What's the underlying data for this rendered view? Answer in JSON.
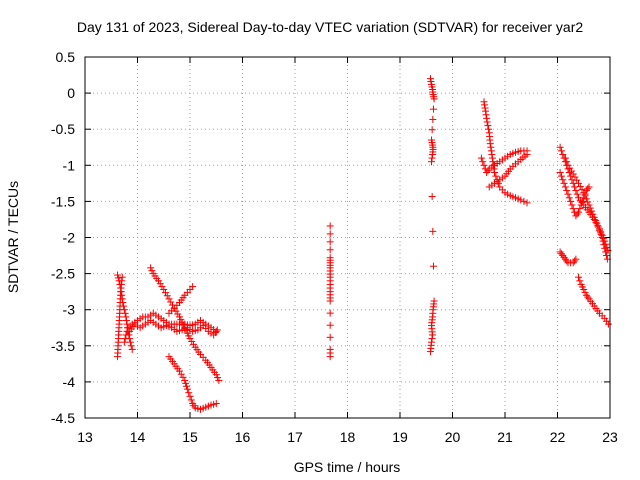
{
  "chart_data": {
    "type": "scatter",
    "title": "Day 131 of 2023, Sidereal Day-to-day VTEC variation (SDTVAR) for receiver yar2",
    "xlabel": "GPS time / hours",
    "ylabel": "SDTVAR / TECUs",
    "xlim": [
      13,
      23
    ],
    "ylim": [
      -4.5,
      0.5
    ],
    "xticks": [
      "13",
      "14",
      "15",
      "16",
      "17",
      "18",
      "19",
      "20",
      "21",
      "22",
      "23"
    ],
    "yticks": [
      "0.5",
      "0",
      "-0.5",
      "-1",
      "-1.5",
      "-2",
      "-2.5",
      "-3",
      "-3.5",
      "-4",
      "-4.5"
    ],
    "grid": true,
    "marker": "+",
    "color": "#ff0000",
    "series": [
      {
        "name": "SDTVAR",
        "segments": [
          [
            [
              13.62,
              -2.52
            ],
            [
              13.65,
              -2.6
            ],
            [
              13.68,
              -2.7
            ],
            [
              13.7,
              -2.8
            ],
            [
              13.72,
              -2.9
            ],
            [
              13.75,
              -3.0
            ],
            [
              13.78,
              -3.1
            ],
            [
              13.8,
              -3.2
            ],
            [
              13.82,
              -3.3
            ],
            [
              13.85,
              -3.4
            ],
            [
              13.88,
              -3.5
            ],
            [
              13.9,
              -3.55
            ]
          ],
          [
            [
              13.62,
              -3.65
            ],
            [
              13.63,
              -3.5
            ],
            [
              13.64,
              -3.35
            ],
            [
              13.65,
              -3.2
            ],
            [
              13.66,
              -3.05
            ],
            [
              13.67,
              -2.9
            ],
            [
              13.68,
              -2.75
            ],
            [
              13.7,
              -2.6
            ],
            [
              13.71,
              -2.55
            ]
          ],
          [
            [
              13.75,
              -3.45
            ],
            [
              13.78,
              -3.35
            ],
            [
              13.82,
              -3.25
            ],
            [
              13.9,
              -3.2
            ],
            [
              14.0,
              -3.15
            ],
            [
              14.1,
              -3.1
            ],
            [
              14.2,
              -3.1
            ],
            [
              14.3,
              -3.05
            ],
            [
              14.4,
              -3.1
            ],
            [
              14.5,
              -3.15
            ],
            [
              14.6,
              -3.2
            ],
            [
              14.7,
              -3.2
            ],
            [
              14.8,
              -3.2
            ],
            [
              14.9,
              -3.2
            ],
            [
              15.0,
              -3.22
            ],
            [
              15.1,
              -3.2
            ],
            [
              15.2,
              -3.15
            ],
            [
              15.3,
              -3.2
            ],
            [
              15.4,
              -3.25
            ],
            [
              15.5,
              -3.3
            ]
          ],
          [
            [
              13.85,
              -3.3
            ],
            [
              13.95,
              -3.2
            ],
            [
              14.05,
              -3.25
            ],
            [
              14.15,
              -3.2
            ],
            [
              14.25,
              -3.15
            ],
            [
              14.35,
              -3.2
            ],
            [
              14.45,
              -3.25
            ],
            [
              14.55,
              -3.22
            ],
            [
              14.65,
              -3.25
            ],
            [
              14.75,
              -3.3
            ],
            [
              14.85,
              -3.28
            ],
            [
              14.95,
              -3.25
            ],
            [
              15.05,
              -3.3
            ],
            [
              15.15,
              -3.28
            ],
            [
              15.25,
              -3.22
            ],
            [
              15.35,
              -3.3
            ],
            [
              15.45,
              -3.35
            ],
            [
              15.52,
              -3.28
            ]
          ],
          [
            [
              14.25,
              -2.42
            ],
            [
              14.3,
              -2.5
            ],
            [
              14.4,
              -2.6
            ],
            [
              14.5,
              -2.72
            ],
            [
              14.6,
              -2.85
            ],
            [
              14.7,
              -2.98
            ],
            [
              14.8,
              -3.1
            ],
            [
              14.9,
              -3.25
            ],
            [
              15.0,
              -3.4
            ],
            [
              15.1,
              -3.52
            ],
            [
              15.2,
              -3.62
            ],
            [
              15.3,
              -3.7
            ],
            [
              15.4,
              -3.8
            ],
            [
              15.5,
              -3.9
            ],
            [
              15.55,
              -3.98
            ]
          ],
          [
            [
              14.6,
              -3.05
            ],
            [
              14.7,
              -2.98
            ],
            [
              14.8,
              -2.9
            ],
            [
              14.9,
              -2.8
            ],
            [
              15.0,
              -2.72
            ],
            [
              15.05,
              -2.68
            ]
          ],
          [
            [
              14.6,
              -3.65
            ],
            [
              14.7,
              -3.75
            ],
            [
              14.8,
              -3.85
            ],
            [
              14.9,
              -3.98
            ],
            [
              14.95,
              -4.1
            ],
            [
              15.0,
              -4.2
            ],
            [
              15.05,
              -4.3
            ],
            [
              15.1,
              -4.36
            ],
            [
              15.2,
              -4.38
            ],
            [
              15.3,
              -4.35
            ],
            [
              15.4,
              -4.32
            ],
            [
              15.5,
              -4.3
            ]
          ],
          [
            [
              17.67,
              -1.84
            ],
            [
              17.67,
              -2.28
            ],
            [
              17.67,
              -2.35
            ],
            [
              17.67,
              -2.42
            ],
            [
              17.67,
              -2.55
            ],
            [
              17.67,
              -2.75
            ],
            [
              17.67,
              -2.88
            ],
            [
              17.67,
              -3.55
            ],
            [
              17.67,
              -3.65
            ]
          ],
          [
            [
              19.58,
              0.2
            ],
            [
              19.6,
              0.12
            ],
            [
              19.62,
              0.05
            ],
            [
              19.63,
              -0.02
            ],
            [
              19.65,
              -0.08
            ],
            [
              19.6,
              -0.65
            ],
            [
              19.62,
              -0.72
            ],
            [
              19.63,
              -0.78
            ],
            [
              19.62,
              -0.85
            ],
            [
              19.6,
              -0.95
            ],
            [
              19.65,
              -2.88
            ],
            [
              19.63,
              -3.0
            ],
            [
              19.62,
              -3.1
            ],
            [
              19.6,
              -3.22
            ],
            [
              19.62,
              -3.35
            ],
            [
              19.6,
              -3.45
            ],
            [
              19.58,
              -3.58
            ]
          ],
          [
            [
              20.6,
              -0.12
            ],
            [
              20.63,
              -0.25
            ],
            [
              20.66,
              -0.4
            ],
            [
              20.7,
              -0.55
            ],
            [
              20.72,
              -0.7
            ],
            [
              20.75,
              -0.85
            ],
            [
              20.78,
              -1.0
            ],
            [
              20.8,
              -1.1
            ],
            [
              20.85,
              -1.2
            ],
            [
              20.9,
              -1.3
            ],
            [
              21.0,
              -1.38
            ],
            [
              21.1,
              -1.42
            ],
            [
              21.2,
              -1.45
            ],
            [
              21.3,
              -1.48
            ],
            [
              21.42,
              -1.52
            ]
          ],
          [
            [
              20.55,
              -0.9
            ],
            [
              20.6,
              -1.0
            ],
            [
              20.65,
              -1.1
            ],
            [
              20.7,
              -1.05
            ],
            [
              20.8,
              -1.0
            ],
            [
              20.9,
              -0.95
            ],
            [
              21.0,
              -0.9
            ],
            [
              21.1,
              -0.85
            ],
            [
              21.2,
              -0.82
            ],
            [
              21.3,
              -0.8
            ],
            [
              21.42,
              -0.8
            ]
          ],
          [
            [
              20.7,
              -1.3
            ],
            [
              20.8,
              -1.25
            ],
            [
              20.9,
              -1.2
            ],
            [
              21.0,
              -1.15
            ],
            [
              21.1,
              -1.05
            ],
            [
              21.2,
              -0.98
            ],
            [
              21.3,
              -0.92
            ],
            [
              21.42,
              -0.85
            ]
          ],
          [
            [
              22.05,
              -0.75
            ],
            [
              22.1,
              -0.85
            ],
            [
              22.15,
              -0.95
            ],
            [
              22.2,
              -1.05
            ],
            [
              22.25,
              -1.15
            ],
            [
              22.3,
              -1.25
            ],
            [
              22.35,
              -1.35
            ],
            [
              22.4,
              -1.45
            ],
            [
              22.5,
              -1.55
            ],
            [
              22.6,
              -1.65
            ],
            [
              22.7,
              -1.75
            ],
            [
              22.8,
              -1.88
            ],
            [
              22.85,
              -2.0
            ],
            [
              22.9,
              -2.15
            ],
            [
              22.95,
              -2.3
            ]
          ],
          [
            [
              22.15,
              -0.9
            ],
            [
              22.2,
              -1.0
            ],
            [
              22.3,
              -1.12
            ],
            [
              22.4,
              -1.25
            ],
            [
              22.5,
              -1.38
            ],
            [
              22.6,
              -1.55
            ],
            [
              22.7,
              -1.72
            ],
            [
              22.8,
              -1.9
            ],
            [
              22.9,
              -2.05
            ],
            [
              22.96,
              -2.18
            ]
          ],
          [
            [
              22.05,
              -1.1
            ],
            [
              22.1,
              -1.2
            ],
            [
              22.15,
              -1.3
            ],
            [
              22.2,
              -1.4
            ],
            [
              22.25,
              -1.5
            ],
            [
              22.3,
              -1.6
            ],
            [
              22.35,
              -1.7
            ],
            [
              22.4,
              -1.65
            ],
            [
              22.45,
              -1.55
            ],
            [
              22.5,
              -1.45
            ],
            [
              22.55,
              -1.35
            ],
            [
              22.6,
              -1.3
            ]
          ],
          [
            [
              22.05,
              -2.2
            ],
            [
              22.1,
              -2.25
            ],
            [
              22.15,
              -2.3
            ],
            [
              22.2,
              -2.35
            ],
            [
              22.3,
              -2.35
            ],
            [
              22.35,
              -2.3
            ]
          ],
          [
            [
              22.4,
              -2.55
            ],
            [
              22.45,
              -2.65
            ],
            [
              22.5,
              -2.72
            ],
            [
              22.55,
              -2.8
            ],
            [
              22.6,
              -2.85
            ],
            [
              22.7,
              -2.95
            ],
            [
              22.8,
              -3.05
            ],
            [
              22.9,
              -3.12
            ],
            [
              22.97,
              -3.2
            ]
          ]
        ]
      }
    ]
  }
}
